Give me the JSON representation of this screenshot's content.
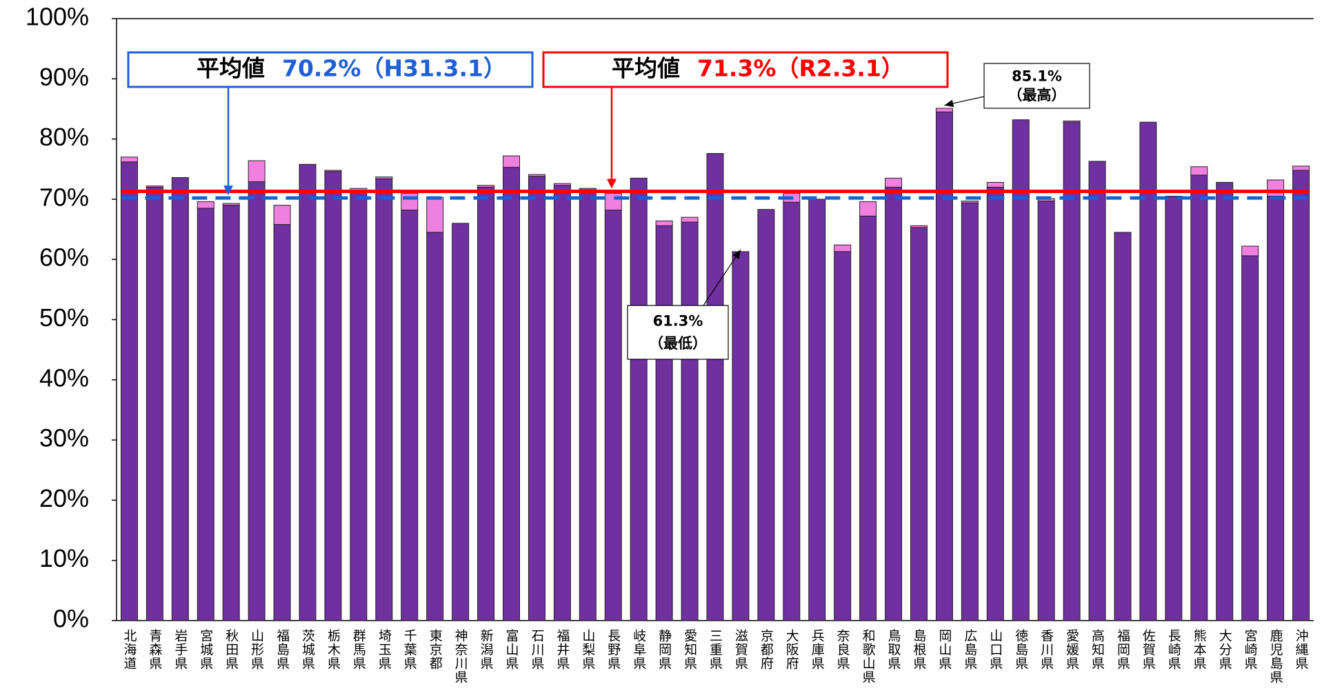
{
  "chart_data": {
    "type": "stacked_bar",
    "categories": [
      "北海道",
      "青森県",
      "岩手県",
      "宮城県",
      "秋田県",
      "山形県",
      "福島県",
      "茨城県",
      "栃木県",
      "群馬県",
      "埼玉県",
      "千葉県",
      "東京都",
      "神奈川県",
      "新潟県",
      "富山県",
      "石川県",
      "福井県",
      "山梨県",
      "長野県",
      "岐阜県",
      "静岡県",
      "愛知県",
      "三重県",
      "滋賀県",
      "京都府",
      "大阪府",
      "兵庫県",
      "奈良県",
      "和歌山県",
      "鳥取県",
      "島根県",
      "岡山県",
      "広島県",
      "山口県",
      "徳島県",
      "香川県",
      "愛媛県",
      "高知県",
      "福岡県",
      "佐賀県",
      "長崎県",
      "熊本県",
      "大分県",
      "宮崎県",
      "鹿児島県",
      "沖縄県"
    ],
    "series": [
      {
        "color": "#7030a0",
        "values": [
          76.2,
          72.0,
          73.6,
          68.5,
          69.0,
          72.9,
          65.8,
          75.8,
          74.6,
          71.5,
          73.4,
          68.2,
          64.5,
          66.0,
          72.0,
          75.3,
          73.8,
          72.3,
          71.6,
          68.2,
          73.5,
          65.6,
          66.2,
          77.6,
          61.3,
          68.3,
          69.5,
          70.0,
          61.3,
          67.2,
          72.0,
          65.3,
          84.5,
          69.4,
          72.0,
          83.2,
          69.7,
          82.8,
          76.3,
          64.5,
          82.8,
          70.5,
          74.0,
          72.8,
          60.6,
          70.5,
          74.8
        ]
      },
      {
        "color": "#f080e0",
        "values": [
          0.8,
          0.2,
          0,
          1.1,
          0.3,
          3.5,
          3.2,
          0,
          0.2,
          0.3,
          0.3,
          2.8,
          5.8,
          0,
          0.3,
          1.9,
          0.3,
          0.3,
          0.2,
          2.8,
          0,
          0.8,
          0.8,
          0,
          0,
          0,
          1.5,
          0,
          1.1,
          2.4,
          1.5,
          0.3,
          0.6,
          0.3,
          0.8,
          0,
          0.4,
          0.2,
          0,
          0,
          0,
          0,
          1.4,
          0,
          1.6,
          2.7,
          0.7
        ]
      }
    ],
    "ylim": [
      0,
      100
    ],
    "yticks": [
      {
        "value": 0,
        "label": "0%"
      },
      {
        "value": 10,
        "label": "10%"
      },
      {
        "value": 20,
        "label": "20%"
      },
      {
        "value": 30,
        "label": "30%"
      },
      {
        "value": 40,
        "label": "40%"
      },
      {
        "value": 50,
        "label": "50%"
      },
      {
        "value": 60,
        "label": "60%"
      },
      {
        "value": 70,
        "label": "70%"
      },
      {
        "value": 80,
        "label": "80%"
      },
      {
        "value": 90,
        "label": "90%"
      },
      {
        "value": 100,
        "label": "100%"
      }
    ],
    "reference_lines": [
      {
        "name": "平均値",
        "value": 70.2,
        "value_label": "70.2%（H31.3.1）",
        "color": "#1f5fd6",
        "style": "dashed"
      },
      {
        "name": "平均値",
        "value": 71.3,
        "value_label": "71.3%（R2.3.1）",
        "color": "#ff0000",
        "style": "solid"
      }
    ],
    "annotations": [
      {
        "text": "85.1%",
        "note": "（最高）"
      },
      {
        "text": "61.3%",
        "note": "（最低）"
      }
    ]
  }
}
